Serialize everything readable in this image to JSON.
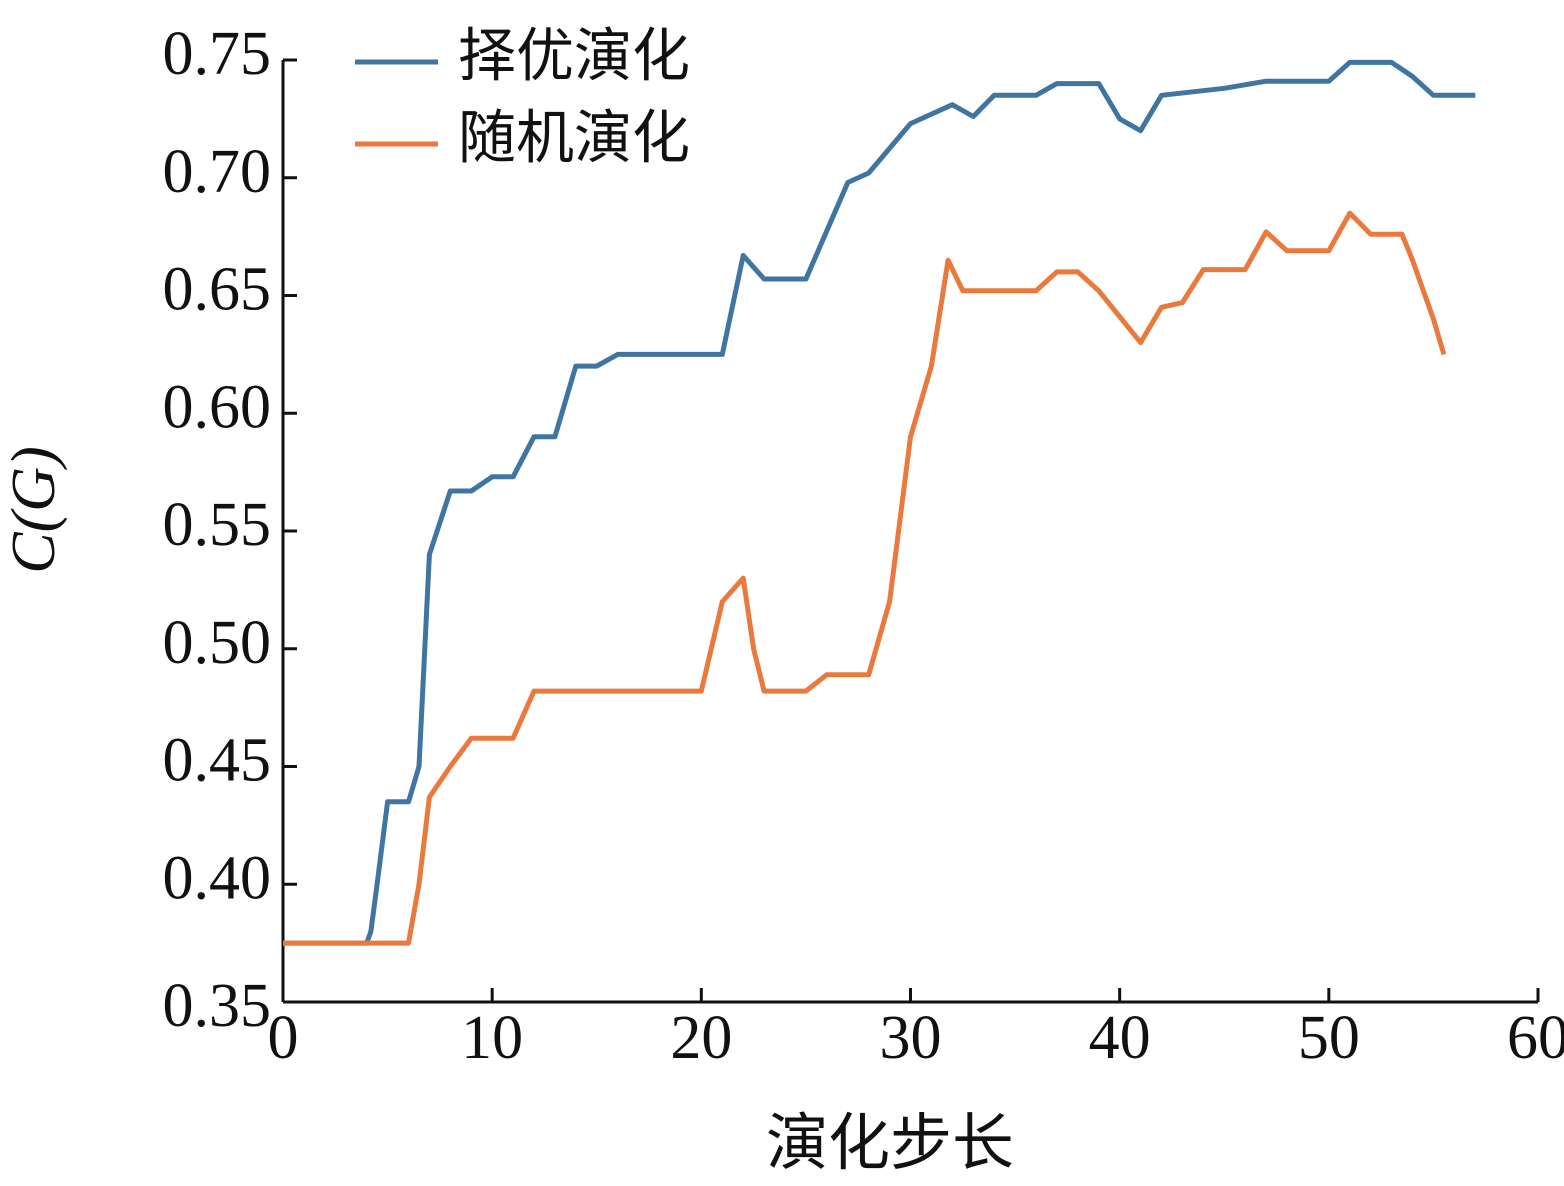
{
  "chart_data": {
    "type": "line",
    "xlabel": "演化步长",
    "ylabel": "C(G)",
    "xlim": [
      0,
      60
    ],
    "xticks": [
      0,
      10,
      20,
      30,
      40,
      50,
      60
    ],
    "ylim": [
      0.35,
      0.75
    ],
    "yticks": [
      {
        "value": 0.35,
        "label": "0.35"
      },
      {
        "value": 0.4,
        "label": "0.40"
      },
      0.45,
      {
        "value": 0.5,
        "label": "0.50"
      },
      0.55,
      {
        "value": 0.6,
        "label": "0.60"
      },
      0.65,
      {
        "value": 0.7,
        "label": "0.70"
      },
      0.75
    ],
    "legend": "upper left",
    "series": [
      {
        "name": "择优演化",
        "color": "#3f75a0",
        "x": [
          0,
          4,
          4.2,
          4.5,
          5,
          6,
          6.5,
          7,
          8,
          9,
          10,
          11,
          12,
          13,
          14,
          15,
          16,
          21,
          22,
          23,
          25,
          27,
          28,
          30,
          32,
          33,
          34,
          36,
          37,
          39,
          40,
          41,
          42,
          45,
          47,
          50,
          51,
          53,
          54,
          55,
          57
        ],
        "values": [
          0.375,
          0.375,
          0.38,
          0.4,
          0.435,
          0.435,
          0.45,
          0.54,
          0.567,
          0.567,
          0.573,
          0.573,
          0.59,
          0.59,
          0.62,
          0.62,
          0.625,
          0.625,
          0.667,
          0.657,
          0.657,
          0.698,
          0.702,
          0.723,
          0.731,
          0.726,
          0.735,
          0.735,
          0.74,
          0.74,
          0.725,
          0.72,
          0.735,
          0.738,
          0.741,
          0.741,
          0.749,
          0.749,
          0.743,
          0.735,
          0.735
        ]
      },
      {
        "name": "随机演化",
        "color": "#e9793d",
        "x": [
          0,
          6,
          6.5,
          7,
          8,
          9,
          11,
          12,
          20,
          21,
          22,
          22.5,
          23,
          25,
          26,
          28,
          29,
          30,
          31,
          31.8,
          32.5,
          36,
          37,
          38,
          39,
          41,
          42,
          43,
          44,
          46,
          47,
          48,
          50,
          51,
          52,
          53.5,
          54,
          55,
          55.5
        ],
        "values": [
          0.375,
          0.375,
          0.4,
          0.437,
          0.45,
          0.462,
          0.462,
          0.482,
          0.482,
          0.52,
          0.53,
          0.5,
          0.482,
          0.482,
          0.489,
          0.489,
          0.52,
          0.59,
          0.62,
          0.665,
          0.652,
          0.652,
          0.66,
          0.66,
          0.652,
          0.63,
          0.645,
          0.647,
          0.661,
          0.661,
          0.677,
          0.669,
          0.669,
          0.685,
          0.676,
          0.676,
          0.665,
          0.64,
          0.625
        ]
      }
    ]
  }
}
